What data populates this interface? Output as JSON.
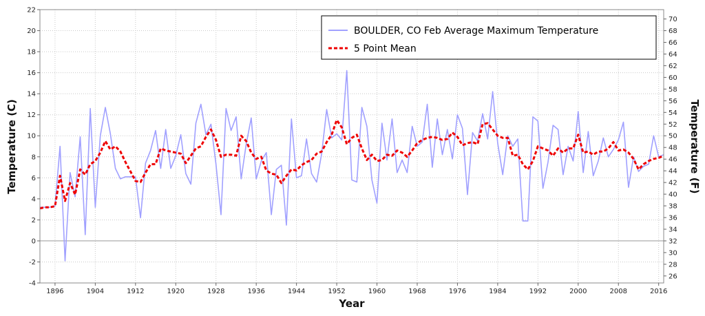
{
  "chart_data": {
    "type": "line",
    "xlabel": "Year",
    "ylabel_left": "Temperature (C)",
    "ylabel_right": "Temperature (F)",
    "xlim": [
      1893,
      2017
    ],
    "ylim": [
      -4,
      22
    ],
    "ylim_right_f": [
      24.8,
      71.6
    ],
    "x_ticks": [
      1896,
      1904,
      1912,
      1920,
      1928,
      1936,
      1944,
      1952,
      1960,
      1968,
      1976,
      1984,
      1992,
      2000,
      2008,
      2016
    ],
    "y_ticks_left": [
      -4,
      -2,
      0,
      2,
      4,
      6,
      8,
      10,
      12,
      14,
      16,
      18,
      20,
      22
    ],
    "y_ticks_right": [
      26,
      28,
      30,
      32,
      34,
      36,
      38,
      40,
      42,
      44,
      46,
      48,
      50,
      52,
      54,
      56,
      58,
      60,
      62,
      64,
      66,
      68,
      70
    ],
    "grid": true,
    "legend_position": "top-right",
    "colors": {
      "series": "#a0a0ff",
      "mean": "#ee0000",
      "grid": "#c8c8c8",
      "zero_line": "#999999"
    },
    "series": [
      {
        "name": "BOULDER, CO  Feb  Average Maximum Temperature",
        "style": "solid",
        "x": [
          1893,
          1894,
          1895,
          1896,
          1897,
          1898,
          1899,
          1900,
          1901,
          1902,
          1903,
          1904,
          1905,
          1906,
          1907,
          1908,
          1909,
          1910,
          1911,
          1912,
          1913,
          1914,
          1915,
          1916,
          1917,
          1918,
          1919,
          1920,
          1921,
          1922,
          1923,
          1924,
          1925,
          1926,
          1927,
          1928,
          1929,
          1930,
          1931,
          1932,
          1933,
          1934,
          1935,
          1936,
          1937,
          1938,
          1939,
          1940,
          1941,
          1942,
          1943,
          1944,
          1945,
          1946,
          1947,
          1948,
          1949,
          1950,
          1951,
          1952,
          1953,
          1954,
          1955,
          1956,
          1957,
          1958,
          1959,
          1960,
          1961,
          1962,
          1963,
          1964,
          1965,
          1966,
          1967,
          1968,
          1969,
          1970,
          1971,
          1972,
          1973,
          1974,
          1975,
          1976,
          1977,
          1978,
          1979,
          1980,
          1981,
          1982,
          1983,
          1984,
          1985,
          1986,
          1987,
          1988,
          1989,
          1990,
          1991,
          1992,
          1993,
          1994,
          1995,
          1996,
          1997,
          1998,
          1999,
          2000,
          2001,
          2002,
          2003,
          2004,
          2005,
          2006,
          2007,
          2008,
          2009,
          2010,
          2011,
          2012,
          2013,
          2014,
          2015,
          2016,
          2017
        ],
        "values": [
          3.2,
          3.2,
          3.2,
          3.3,
          9.0,
          -1.9,
          6.5,
          4.2,
          9.9,
          0.6,
          12.6,
          3.2,
          10.0,
          12.7,
          10.2,
          6.9,
          5.9,
          6.1,
          6.1,
          6.1,
          2.2,
          7.4,
          8.6,
          10.5,
          6.9,
          10.6,
          6.9,
          8.1,
          10.1,
          6.4,
          5.4,
          11.2,
          13.0,
          10.1,
          11.1,
          7.3,
          2.5,
          12.6,
          10.5,
          11.8,
          5.9,
          9.2,
          11.7,
          5.9,
          7.6,
          8.4,
          2.5,
          6.8,
          7.2,
          1.5,
          11.6,
          6.0,
          6.2,
          9.7,
          6.4,
          5.6,
          8.3,
          12.5,
          9.8,
          10.2,
          9.6,
          16.2,
          5.8,
          5.6,
          12.7,
          10.9,
          5.8,
          3.6,
          11.2,
          7.7,
          11.6,
          6.5,
          7.7,
          6.5,
          10.9,
          9.0,
          9.4,
          13.0,
          7.0,
          11.6,
          8.2,
          10.6,
          7.8,
          12.0,
          10.7,
          4.4,
          10.3,
          9.5,
          12.1,
          9.7,
          14.2,
          9.3,
          6.3,
          10.0,
          9.0,
          9.7,
          1.9,
          1.9,
          11.8,
          11.4,
          5.0,
          7.5,
          11.0,
          10.6,
          6.3,
          9.0,
          7.6,
          12.3,
          6.5,
          10.4,
          6.2,
          7.6,
          9.8,
          8.0,
          8.7,
          9.6,
          11.3,
          5.1,
          8.0,
          6.6,
          7.1,
          7.3,
          10.0,
          8.0,
          8.2
        ]
      },
      {
        "name": "5 Point Mean",
        "style": "dashed",
        "x": [
          1893,
          1894,
          1895,
          1896,
          1897,
          1898,
          1899,
          1900,
          1901,
          1902,
          1903,
          1904,
          1905,
          1906,
          1907,
          1908,
          1909,
          1910,
          1911,
          1912,
          1913,
          1914,
          1915,
          1916,
          1917,
          1918,
          1919,
          1920,
          1921,
          1922,
          1923,
          1924,
          1925,
          1926,
          1927,
          1928,
          1929,
          1930,
          1931,
          1932,
          1933,
          1934,
          1935,
          1936,
          1937,
          1938,
          1939,
          1940,
          1941,
          1942,
          1943,
          1944,
          1945,
          1946,
          1947,
          1948,
          1949,
          1950,
          1951,
          1952,
          1953,
          1954,
          1955,
          1956,
          1957,
          1958,
          1959,
          1960,
          1961,
          1962,
          1963,
          1964,
          1965,
          1966,
          1967,
          1968,
          1969,
          1970,
          1971,
          1972,
          1973,
          1974,
          1975,
          1976,
          1977,
          1978,
          1979,
          1980,
          1981,
          1982,
          1983,
          1984,
          1985,
          1986,
          1987,
          1988,
          1989,
          1990,
          1991,
          1992,
          1993,
          1994,
          1995,
          1996,
          1997,
          1998,
          1999,
          2000,
          2001,
          2002,
          2003,
          2004,
          2005,
          2006,
          2007,
          2008,
          2009,
          2010,
          2011,
          2012,
          2013,
          2014,
          2015,
          2016,
          2017
        ],
        "values": [
          3.1,
          3.2,
          3.2,
          3.3,
          6.2,
          3.8,
          5.5,
          4.4,
          6.8,
          6.3,
          7.3,
          7.6,
          8.4,
          9.5,
          8.7,
          9.0,
          8.5,
          7.5,
          6.6,
          5.7,
          5.6,
          6.5,
          7.3,
          7.3,
          8.8,
          8.6,
          8.5,
          8.4,
          8.3,
          7.4,
          8.1,
          8.8,
          9.0,
          9.9,
          10.6,
          9.6,
          8.0,
          8.2,
          8.2,
          8.1,
          10.0,
          9.5,
          8.4,
          7.8,
          8.0,
          6.7,
          6.4,
          6.3,
          5.5,
          6.2,
          6.8,
          6.7,
          7.2,
          7.5,
          7.7,
          8.3,
          8.5,
          9.4,
          10.1,
          11.5,
          10.8,
          9.2,
          9.8,
          10.1,
          8.8,
          7.7,
          8.2,
          7.6,
          7.7,
          8.2,
          8.1,
          8.6,
          8.4,
          8.0,
          8.6,
          9.3,
          9.6,
          9.8,
          9.9,
          9.8,
          9.6,
          9.7,
          10.3,
          9.9,
          9.1,
          9.3,
          9.4,
          9.2,
          11.1,
          11.2,
          10.6,
          10.0,
          9.8,
          9.8,
          8.1,
          8.2,
          7.3,
          6.8,
          7.6,
          9.0,
          8.8,
          8.6,
          8.1,
          8.8,
          8.4,
          8.8,
          8.8,
          10.1,
          8.4,
          8.5,
          8.2,
          8.5,
          8.5,
          8.8,
          9.4,
          8.6,
          8.7,
          8.4,
          7.8,
          6.8,
          7.3,
          7.6,
          7.8,
          7.9,
          8.1
        ]
      }
    ]
  }
}
